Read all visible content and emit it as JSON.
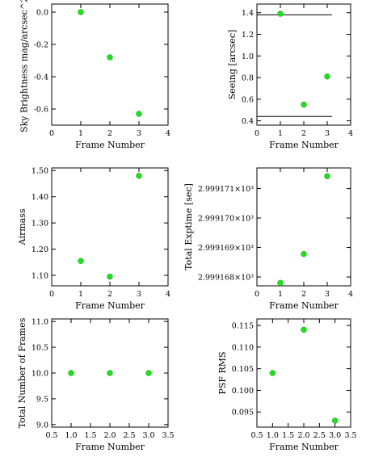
{
  "chart_data": [
    {
      "type": "scatter",
      "xlabel": "Frame Number",
      "ylabel": "Sky Brightness mag/arcsec^2",
      "xlim": [
        0,
        4
      ],
      "ylim": [
        -0.7,
        0.05
      ],
      "xticks": [
        0,
        1,
        2,
        3,
        4
      ],
      "xtick_labels": [
        "0",
        "1",
        "2",
        "3",
        "4"
      ],
      "yticks": [
        0.0,
        -0.2,
        -0.4,
        -0.6
      ],
      "ytick_labels": [
        "0.0",
        "-0.2",
        "-0.4",
        "-0.6"
      ],
      "x": [
        1,
        2,
        3
      ],
      "y": [
        0.0,
        -0.28,
        -0.63
      ],
      "hlines": [],
      "marker_color": "#22dd22",
      "grid": false
    },
    {
      "type": "scatter",
      "xlabel": "Frame Number",
      "ylabel": "Seeing [arcsec]",
      "xlim": [
        0,
        4
      ],
      "ylim": [
        0.36,
        1.48
      ],
      "xticks": [
        0,
        1,
        2,
        3,
        4
      ],
      "xtick_labels": [
        "0",
        "1",
        "2",
        "3",
        "4"
      ],
      "yticks": [
        0.4,
        0.6,
        0.8,
        1.0,
        1.2,
        1.4
      ],
      "ytick_labels": [
        "0.4",
        "0.6",
        "0.8",
        "1.0",
        "1.2",
        "1.4"
      ],
      "x": [
        1,
        2,
        3
      ],
      "y": [
        1.39,
        0.55,
        0.81
      ],
      "hlines": [
        1.38,
        0.44
      ],
      "hline_xrange": [
        0,
        3.2
      ],
      "marker_color": "#22dd22",
      "grid": false
    },
    {
      "type": "scatter",
      "xlabel": "Frame Number",
      "ylabel": "Airmass",
      "xlim": [
        0,
        4
      ],
      "ylim": [
        1.06,
        1.51
      ],
      "xticks": [
        0,
        1,
        2,
        3,
        4
      ],
      "xtick_labels": [
        "0",
        "1",
        "2",
        "3",
        "4"
      ],
      "yticks": [
        1.1,
        1.2,
        1.3,
        1.4,
        1.5
      ],
      "ytick_labels": [
        "1.10",
        "1.20",
        "1.30",
        "1.40",
        "1.50"
      ],
      "x": [
        1,
        2,
        3
      ],
      "y": [
        1.155,
        1.095,
        1.48
      ],
      "hlines": [],
      "marker_color": "#22dd22",
      "grid": false
    },
    {
      "type": "scatter",
      "xlabel": "Frame Number",
      "ylabel": "Total Exptime [sec]",
      "xlim": [
        0,
        4
      ],
      "ylim": [
        2.9991677,
        2.9991717
      ],
      "xticks": [
        0,
        1,
        2,
        3,
        4
      ],
      "xtick_labels": [
        "0",
        "1",
        "2",
        "3",
        "4"
      ],
      "yticks": [
        2.999168,
        2.999169,
        2.99917,
        2.999171
      ],
      "ytick_labels": [
        "2.999168×10³",
        "2.999169×10³",
        "2.999170×10³",
        "2.999171×10³"
      ],
      "x": [
        1,
        2,
        3
      ],
      "y": [
        2.9991678,
        2.99916878,
        2.99917142
      ],
      "hlines": [],
      "marker_color": "#22dd22",
      "grid": false
    },
    {
      "type": "scatter",
      "xlabel": "Frame Number",
      "ylabel": "Total Number of Frames",
      "xlim": [
        0.5,
        3.5
      ],
      "ylim": [
        8.95,
        11.05
      ],
      "xticks": [
        0.5,
        1.0,
        1.5,
        2.0,
        2.5,
        3.0,
        3.5
      ],
      "xtick_labels": [
        "0.5",
        "1.0",
        "1.5",
        "2.0",
        "2.5",
        "3.0",
        "3.5"
      ],
      "yticks": [
        9.0,
        9.5,
        10.0,
        10.5,
        11.0
      ],
      "ytick_labels": [
        "9.0",
        "9.5",
        "10.0",
        "10.5",
        "11.0"
      ],
      "x": [
        1,
        2,
        3
      ],
      "y": [
        10.0,
        10.0,
        10.0
      ],
      "hlines": [],
      "marker_color": "#22dd22",
      "grid": false
    },
    {
      "type": "scatter",
      "xlabel": "Frame Number",
      "ylabel": "PSF RMS",
      "xlim": [
        0.5,
        3.5
      ],
      "ylim": [
        0.0915,
        0.1165
      ],
      "xticks": [
        0.5,
        1.0,
        1.5,
        2.0,
        2.5,
        3.0,
        3.5
      ],
      "xtick_labels": [
        "0.5",
        "1.0",
        "1.5",
        "2.0",
        "2.5",
        "3.0",
        "3.5"
      ],
      "yticks": [
        0.095,
        0.1,
        0.105,
        0.11,
        0.115
      ],
      "ytick_labels": [
        "0.095",
        "0.100",
        "0.105",
        "0.110",
        "0.115"
      ],
      "x": [
        1,
        2,
        3
      ],
      "y": [
        0.104,
        0.114,
        0.093
      ],
      "hlines": [],
      "marker_color": "#22dd22",
      "grid": false
    }
  ]
}
